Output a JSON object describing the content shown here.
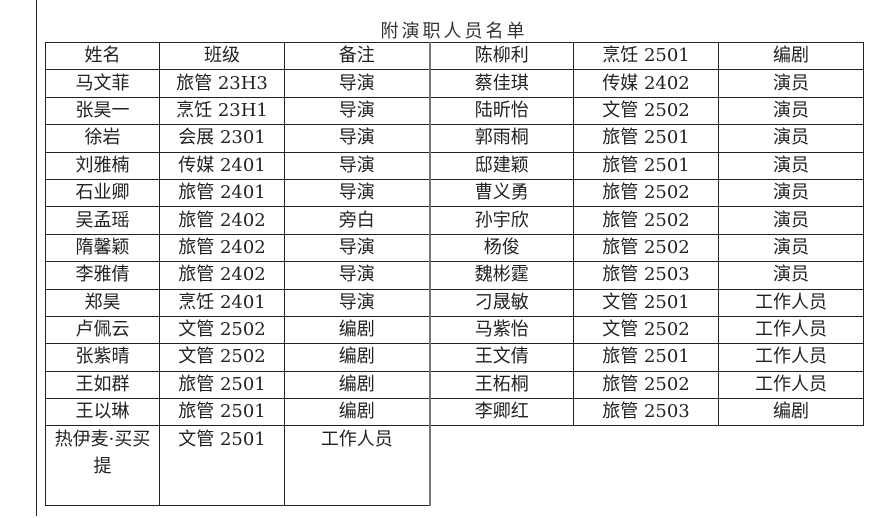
{
  "title": "附演职人员名单",
  "header": [
    "姓名",
    "班级",
    "备注"
  ],
  "left_rows": [
    [
      "马文菲",
      "旅管 23H3",
      "导演"
    ],
    [
      "张昊一",
      "烹饪 23H1",
      "导演"
    ],
    [
      "徐岩",
      "会展 2301",
      "导演"
    ],
    [
      "刘雅楠",
      "传媒 2401",
      "导演"
    ],
    [
      "石业卿",
      "旅管 2401",
      "导演"
    ],
    [
      "吴孟瑶",
      "旅管 2402",
      "旁白"
    ],
    [
      "隋馨颖",
      "旅管 2402",
      "导演"
    ],
    [
      "李雅倩",
      "旅管 2402",
      "导演"
    ],
    [
      "郑昊",
      "烹饪 2401",
      "导演"
    ],
    [
      "卢佩云",
      "文管 2502",
      "编剧"
    ],
    [
      "张紫晴",
      "文管 2502",
      "编剧"
    ],
    [
      "王如群",
      "旅管 2501",
      "编剧"
    ],
    [
      "王以琳",
      "旅管 2501",
      "编剧"
    ],
    [
      "热伊麦·买买提",
      "文管 2501",
      "工作人员"
    ]
  ],
  "right_rows": [
    [
      "陈柳利",
      "烹饪 2501",
      "编剧"
    ],
    [
      "蔡佳琪",
      "传媒 2402",
      "演员"
    ],
    [
      "陆昕怡",
      "文管 2502",
      "演员"
    ],
    [
      "郭雨桐",
      "旅管 2501",
      "演员"
    ],
    [
      "邸建颖",
      "旅管 2501",
      "演员"
    ],
    [
      "曹义勇",
      "旅管 2502",
      "演员"
    ],
    [
      "孙宇欣",
      "旅管 2502",
      "演员"
    ],
    [
      "杨俊",
      "旅管 2502",
      "演员"
    ],
    [
      "魏彬霆",
      "旅管 2503",
      "演员"
    ],
    [
      "刁晟敏",
      "文管 2501",
      "工作人员"
    ],
    [
      "马紫怡",
      "文管 2502",
      "工作人员"
    ],
    [
      "王文倩",
      "旅管 2501",
      "工作人员"
    ],
    [
      "王柘桐",
      "旅管 2502",
      "工作人员"
    ],
    [
      "李卿红",
      "旅管 2503",
      "编剧"
    ]
  ]
}
